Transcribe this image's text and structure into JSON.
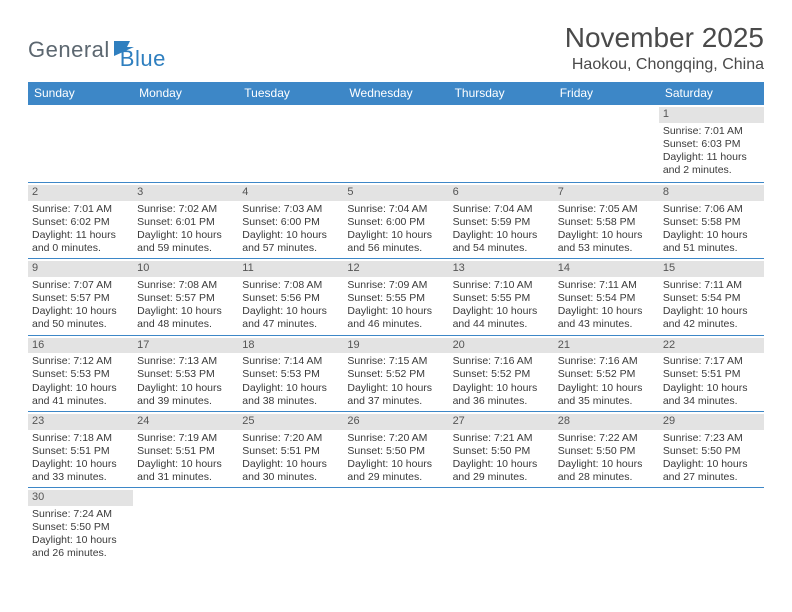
{
  "logo": {
    "part1": "General",
    "part2": "Blue"
  },
  "title": "November 2025",
  "location": "Haokou, Chongqing, China",
  "dow": [
    "Sunday",
    "Monday",
    "Tuesday",
    "Wednesday",
    "Thursday",
    "Friday",
    "Saturday"
  ],
  "colors": {
    "header_bg": "#3d87c7",
    "daynum_bg": "#e3e3e3",
    "text": "#3a3a3a",
    "logo_gray": "#5c6770",
    "logo_blue": "#2f7fbf"
  },
  "weeks": [
    [
      null,
      null,
      null,
      null,
      null,
      null,
      {
        "d": "1",
        "sr": "Sunrise: 7:01 AM",
        "ss": "Sunset: 6:03 PM",
        "dl1": "Daylight: 11 hours",
        "dl2": "and 2 minutes."
      }
    ],
    [
      {
        "d": "2",
        "sr": "Sunrise: 7:01 AM",
        "ss": "Sunset: 6:02 PM",
        "dl1": "Daylight: 11 hours",
        "dl2": "and 0 minutes."
      },
      {
        "d": "3",
        "sr": "Sunrise: 7:02 AM",
        "ss": "Sunset: 6:01 PM",
        "dl1": "Daylight: 10 hours",
        "dl2": "and 59 minutes."
      },
      {
        "d": "4",
        "sr": "Sunrise: 7:03 AM",
        "ss": "Sunset: 6:00 PM",
        "dl1": "Daylight: 10 hours",
        "dl2": "and 57 minutes."
      },
      {
        "d": "5",
        "sr": "Sunrise: 7:04 AM",
        "ss": "Sunset: 6:00 PM",
        "dl1": "Daylight: 10 hours",
        "dl2": "and 56 minutes."
      },
      {
        "d": "6",
        "sr": "Sunrise: 7:04 AM",
        "ss": "Sunset: 5:59 PM",
        "dl1": "Daylight: 10 hours",
        "dl2": "and 54 minutes."
      },
      {
        "d": "7",
        "sr": "Sunrise: 7:05 AM",
        "ss": "Sunset: 5:58 PM",
        "dl1": "Daylight: 10 hours",
        "dl2": "and 53 minutes."
      },
      {
        "d": "8",
        "sr": "Sunrise: 7:06 AM",
        "ss": "Sunset: 5:58 PM",
        "dl1": "Daylight: 10 hours",
        "dl2": "and 51 minutes."
      }
    ],
    [
      {
        "d": "9",
        "sr": "Sunrise: 7:07 AM",
        "ss": "Sunset: 5:57 PM",
        "dl1": "Daylight: 10 hours",
        "dl2": "and 50 minutes."
      },
      {
        "d": "10",
        "sr": "Sunrise: 7:08 AM",
        "ss": "Sunset: 5:57 PM",
        "dl1": "Daylight: 10 hours",
        "dl2": "and 48 minutes."
      },
      {
        "d": "11",
        "sr": "Sunrise: 7:08 AM",
        "ss": "Sunset: 5:56 PM",
        "dl1": "Daylight: 10 hours",
        "dl2": "and 47 minutes."
      },
      {
        "d": "12",
        "sr": "Sunrise: 7:09 AM",
        "ss": "Sunset: 5:55 PM",
        "dl1": "Daylight: 10 hours",
        "dl2": "and 46 minutes."
      },
      {
        "d": "13",
        "sr": "Sunrise: 7:10 AM",
        "ss": "Sunset: 5:55 PM",
        "dl1": "Daylight: 10 hours",
        "dl2": "and 44 minutes."
      },
      {
        "d": "14",
        "sr": "Sunrise: 7:11 AM",
        "ss": "Sunset: 5:54 PM",
        "dl1": "Daylight: 10 hours",
        "dl2": "and 43 minutes."
      },
      {
        "d": "15",
        "sr": "Sunrise: 7:11 AM",
        "ss": "Sunset: 5:54 PM",
        "dl1": "Daylight: 10 hours",
        "dl2": "and 42 minutes."
      }
    ],
    [
      {
        "d": "16",
        "sr": "Sunrise: 7:12 AM",
        "ss": "Sunset: 5:53 PM",
        "dl1": "Daylight: 10 hours",
        "dl2": "and 41 minutes."
      },
      {
        "d": "17",
        "sr": "Sunrise: 7:13 AM",
        "ss": "Sunset: 5:53 PM",
        "dl1": "Daylight: 10 hours",
        "dl2": "and 39 minutes."
      },
      {
        "d": "18",
        "sr": "Sunrise: 7:14 AM",
        "ss": "Sunset: 5:53 PM",
        "dl1": "Daylight: 10 hours",
        "dl2": "and 38 minutes."
      },
      {
        "d": "19",
        "sr": "Sunrise: 7:15 AM",
        "ss": "Sunset: 5:52 PM",
        "dl1": "Daylight: 10 hours",
        "dl2": "and 37 minutes."
      },
      {
        "d": "20",
        "sr": "Sunrise: 7:16 AM",
        "ss": "Sunset: 5:52 PM",
        "dl1": "Daylight: 10 hours",
        "dl2": "and 36 minutes."
      },
      {
        "d": "21",
        "sr": "Sunrise: 7:16 AM",
        "ss": "Sunset: 5:52 PM",
        "dl1": "Daylight: 10 hours",
        "dl2": "and 35 minutes."
      },
      {
        "d": "22",
        "sr": "Sunrise: 7:17 AM",
        "ss": "Sunset: 5:51 PM",
        "dl1": "Daylight: 10 hours",
        "dl2": "and 34 minutes."
      }
    ],
    [
      {
        "d": "23",
        "sr": "Sunrise: 7:18 AM",
        "ss": "Sunset: 5:51 PM",
        "dl1": "Daylight: 10 hours",
        "dl2": "and 33 minutes."
      },
      {
        "d": "24",
        "sr": "Sunrise: 7:19 AM",
        "ss": "Sunset: 5:51 PM",
        "dl1": "Daylight: 10 hours",
        "dl2": "and 31 minutes."
      },
      {
        "d": "25",
        "sr": "Sunrise: 7:20 AM",
        "ss": "Sunset: 5:51 PM",
        "dl1": "Daylight: 10 hours",
        "dl2": "and 30 minutes."
      },
      {
        "d": "26",
        "sr": "Sunrise: 7:20 AM",
        "ss": "Sunset: 5:50 PM",
        "dl1": "Daylight: 10 hours",
        "dl2": "and 29 minutes."
      },
      {
        "d": "27",
        "sr": "Sunrise: 7:21 AM",
        "ss": "Sunset: 5:50 PM",
        "dl1": "Daylight: 10 hours",
        "dl2": "and 29 minutes."
      },
      {
        "d": "28",
        "sr": "Sunrise: 7:22 AM",
        "ss": "Sunset: 5:50 PM",
        "dl1": "Daylight: 10 hours",
        "dl2": "and 28 minutes."
      },
      {
        "d": "29",
        "sr": "Sunrise: 7:23 AM",
        "ss": "Sunset: 5:50 PM",
        "dl1": "Daylight: 10 hours",
        "dl2": "and 27 minutes."
      }
    ],
    [
      {
        "d": "30",
        "sr": "Sunrise: 7:24 AM",
        "ss": "Sunset: 5:50 PM",
        "dl1": "Daylight: 10 hours",
        "dl2": "and 26 minutes."
      },
      null,
      null,
      null,
      null,
      null,
      null
    ]
  ]
}
